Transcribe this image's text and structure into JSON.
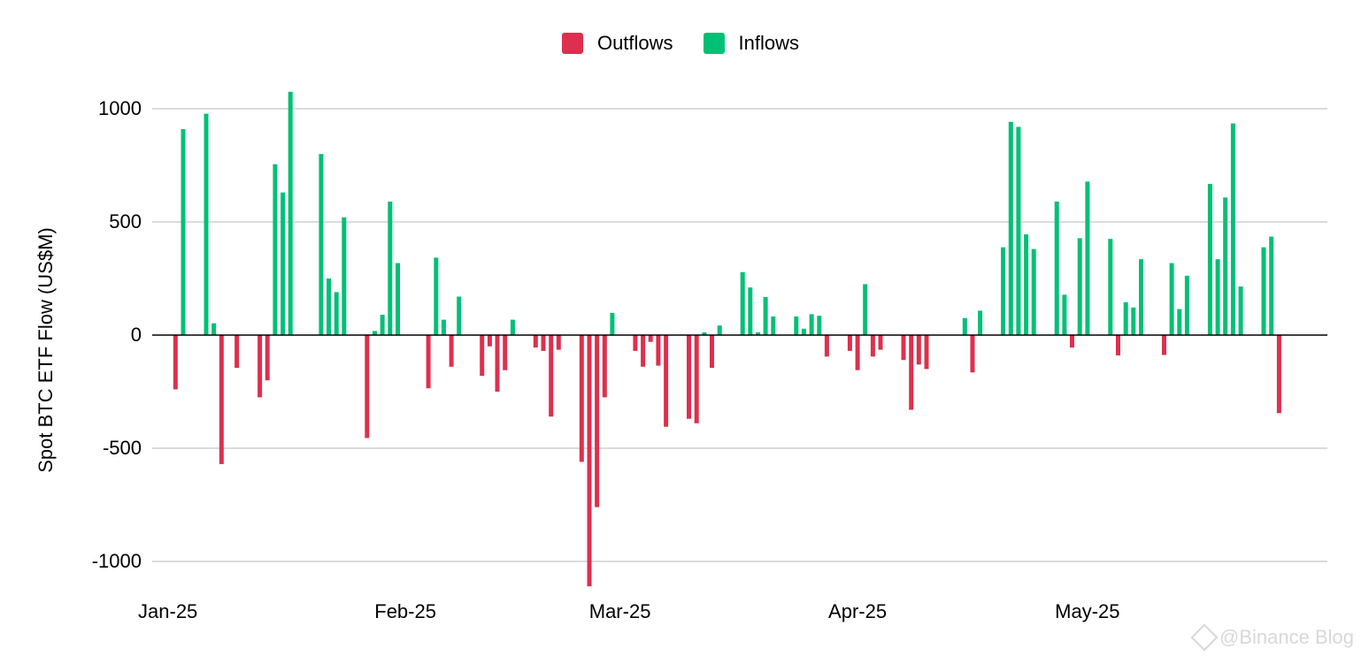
{
  "chart_data": {
    "type": "bar",
    "ylabel": "Spot BTC ETF Flow (US$M)",
    "ylim": [
      -1100,
      1100
    ],
    "yticks": [
      1000,
      500,
      0,
      -500,
      -1000
    ],
    "ytick_labels": [
      "1000",
      "500",
      "0",
      "-500",
      "-1000"
    ],
    "grid": true,
    "legend_position": "top-center",
    "colors": {
      "outflows": "#de2f4e",
      "inflows": "#00c076",
      "grid": "#c8c8c8"
    },
    "series": [
      {
        "name": "Outflows",
        "color": "#de2f4e"
      },
      {
        "name": "Inflows",
        "color": "#00c076"
      }
    ],
    "x_label_positions": {
      "Jan-25": 1,
      "Feb-25": 32,
      "Mar-25": 60,
      "Apr-25": 91,
      "May-25": 121
    },
    "x_range": [
      0,
      152
    ],
    "bars": [
      [
        2,
        -240
      ],
      [
        3,
        910
      ],
      [
        6,
        978
      ],
      [
        7,
        52
      ],
      [
        8,
        -570
      ],
      [
        10,
        -145
      ],
      [
        13,
        -275
      ],
      [
        14,
        -200
      ],
      [
        15,
        755
      ],
      [
        16,
        630
      ],
      [
        17,
        1075
      ],
      [
        21,
        800
      ],
      [
        22,
        250
      ],
      [
        23,
        190
      ],
      [
        24,
        520
      ],
      [
        27,
        -455
      ],
      [
        28,
        18
      ],
      [
        29,
        90
      ],
      [
        30,
        590
      ],
      [
        31,
        318
      ],
      [
        35,
        -235
      ],
      [
        36,
        342
      ],
      [
        37,
        68
      ],
      [
        38,
        -140
      ],
      [
        39,
        170
      ],
      [
        42,
        -180
      ],
      [
        43,
        -50
      ],
      [
        44,
        -250
      ],
      [
        45,
        -155
      ],
      [
        46,
        68
      ],
      [
        49,
        -55
      ],
      [
        50,
        -70
      ],
      [
        51,
        -360
      ],
      [
        52,
        -65
      ],
      [
        55,
        -560
      ],
      [
        56,
        -1110
      ],
      [
        57,
        -760
      ],
      [
        58,
        -275
      ],
      [
        59,
        98
      ],
      [
        62,
        -70
      ],
      [
        63,
        -140
      ],
      [
        64,
        -30
      ],
      [
        65,
        -135
      ],
      [
        66,
        -405
      ],
      [
        69,
        -370
      ],
      [
        70,
        -390
      ],
      [
        71,
        12
      ],
      [
        72,
        -145
      ],
      [
        73,
        42
      ],
      [
        76,
        278
      ],
      [
        77,
        210
      ],
      [
        78,
        12
      ],
      [
        79,
        168
      ],
      [
        80,
        82
      ],
      [
        83,
        82
      ],
      [
        84,
        28
      ],
      [
        85,
        92
      ],
      [
        86,
        85
      ],
      [
        87,
        -95
      ],
      [
        90,
        -70
      ],
      [
        91,
        -155
      ],
      [
        92,
        225
      ],
      [
        93,
        -95
      ],
      [
        94,
        -65
      ],
      [
        97,
        -110
      ],
      [
        98,
        -330
      ],
      [
        99,
        -130
      ],
      [
        100,
        -150
      ],
      [
        105,
        75
      ],
      [
        106,
        -165
      ],
      [
        107,
        108
      ],
      [
        110,
        388
      ],
      [
        111,
        942
      ],
      [
        112,
        920
      ],
      [
        113,
        445
      ],
      [
        114,
        380
      ],
      [
        117,
        590
      ],
      [
        118,
        178
      ],
      [
        119,
        -55
      ],
      [
        120,
        428
      ],
      [
        121,
        678
      ],
      [
        124,
        425
      ],
      [
        125,
        -90
      ],
      [
        126,
        145
      ],
      [
        127,
        122
      ],
      [
        128,
        335
      ],
      [
        131,
        -88
      ],
      [
        132,
        318
      ],
      [
        133,
        115
      ],
      [
        134,
        262
      ],
      [
        137,
        668
      ],
      [
        138,
        335
      ],
      [
        139,
        608
      ],
      [
        140,
        935
      ],
      [
        141,
        215
      ],
      [
        144,
        388
      ],
      [
        145,
        435
      ],
      [
        146,
        -345
      ]
    ]
  },
  "watermark": {
    "text": "@Binance Blog"
  }
}
